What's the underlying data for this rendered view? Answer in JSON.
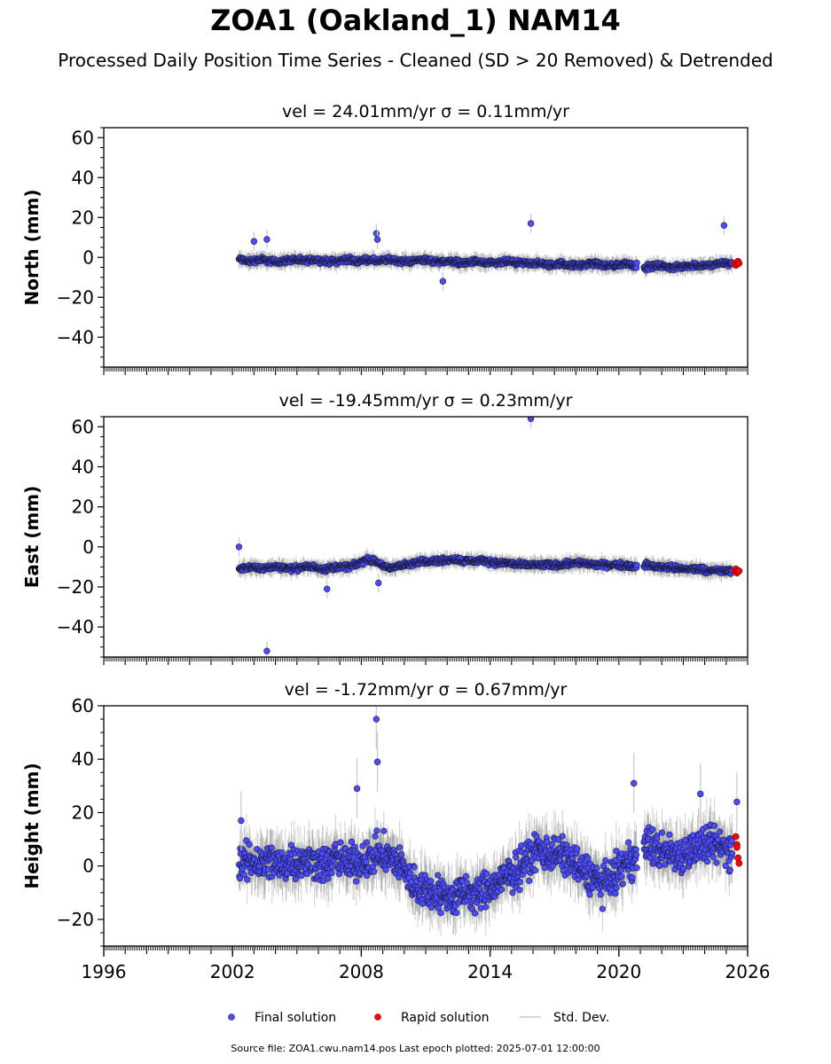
{
  "figure": {
    "title": "ZOA1 (Oakland_1) NAM14",
    "subtitle": "Processed Daily Position Time Series - Cleaned (SD > 20 Removed) & Detrended",
    "source_text": "Source file: ZOA1.cwu.nam14.pos  Last epoch plotted: 2025-07-01 12:00:00"
  },
  "colors": {
    "final": "#4b4bff",
    "final_edge": "#1a1a3a",
    "rapid": "#ff0000",
    "rapid_edge": "#7a0000",
    "std_dev": "#c8c8c8"
  },
  "legend": {
    "placement": "bottom-center",
    "items": [
      {
        "label": "Final solution",
        "marker": "circle",
        "color": "#4b4bff"
      },
      {
        "label": "Rapid solution",
        "marker": "circle",
        "color": "#ff0000"
      },
      {
        "label": "Std. Dev.",
        "marker": "line",
        "color": "#c8c8c8"
      }
    ]
  },
  "chart_data": [
    {
      "type": "scatter",
      "title": "vel = 24.01mm/yr   σ = 0.11mm/yr",
      "ylabel": "North (mm)",
      "xlim": [
        1996,
        2026
      ],
      "ylim": [
        -55,
        65
      ],
      "yticks": [
        -40,
        -20,
        0,
        20,
        40,
        60
      ],
      "ytick_labels": [
        "−40",
        "−20",
        "0",
        "20",
        "40",
        "60"
      ],
      "xtick_labels_shown": false,
      "series": [
        {
          "kind": "final",
          "x": [
            2002.3,
            2002.8,
            2003.3,
            2003.8,
            2004.3,
            2004.8,
            2005.3,
            2005.8,
            2006.3,
            2006.8,
            2007.3,
            2007.8,
            2008.3,
            2008.8,
            2009.3,
            2009.8,
            2010.3,
            2010.8,
            2011.3,
            2011.8,
            2012.3,
            2012.8,
            2013.3,
            2013.8,
            2014.3,
            2014.8,
            2015.3,
            2015.8,
            2016.3,
            2016.8,
            2017.3,
            2017.8,
            2018.3,
            2018.8,
            2019.3,
            2019.8,
            2020.3,
            2020.8,
            2021.3,
            2021.8,
            2022.3,
            2022.8,
            2023.3,
            2023.8,
            2024.3,
            2024.8,
            2025.3
          ],
          "y": [
            -1,
            -2,
            -1,
            -2,
            -2,
            -1,
            -2,
            -1,
            -2,
            -2,
            -1,
            -2,
            -1,
            -2,
            -1,
            -2,
            -2,
            -1,
            -2,
            -2,
            -2,
            -3,
            -2,
            -3,
            -3,
            -2,
            -3,
            -3,
            -3,
            -4,
            -3,
            -4,
            -4,
            -3,
            -4,
            -4,
            -3,
            -4,
            -5,
            -4,
            -5,
            -5,
            -4,
            -4,
            -4,
            -3,
            -3
          ]
        },
        {
          "kind": "final_outliers",
          "x": [
            2003.0,
            2003.6,
            2008.7,
            2008.75,
            2011.8,
            2015.9,
            2024.9
          ],
          "y": [
            8,
            9,
            12,
            9,
            -12,
            17,
            16
          ]
        },
        {
          "kind": "rapid",
          "x": [
            2025.4,
            2025.45,
            2025.5,
            2025.55,
            2025.6
          ],
          "y": [
            -3,
            -4,
            -3,
            -2,
            -3
          ]
        }
      ]
    },
    {
      "type": "scatter",
      "title": "vel = -19.45mm/yr   σ = 0.23mm/yr",
      "ylabel": "East (mm)",
      "xlim": [
        1996,
        2026
      ],
      "ylim": [
        -55,
        65
      ],
      "yticks": [
        -40,
        -20,
        0,
        20,
        40,
        60
      ],
      "ytick_labels": [
        "−40",
        "−20",
        "0",
        "20",
        "40",
        "60"
      ],
      "xtick_labels_shown": false,
      "series": [
        {
          "kind": "final",
          "x": [
            2002.3,
            2002.8,
            2003.3,
            2003.8,
            2004.3,
            2004.8,
            2005.3,
            2005.8,
            2006.3,
            2006.8,
            2007.3,
            2007.8,
            2008.3,
            2008.8,
            2009.3,
            2009.8,
            2010.3,
            2010.8,
            2011.3,
            2011.8,
            2012.3,
            2012.8,
            2013.3,
            2013.8,
            2014.3,
            2014.8,
            2015.3,
            2015.8,
            2016.3,
            2016.8,
            2017.3,
            2017.8,
            2018.3,
            2018.8,
            2019.3,
            2019.8,
            2020.3,
            2020.8,
            2021.3,
            2021.8,
            2022.3,
            2022.8,
            2023.3,
            2023.8,
            2024.3,
            2024.8,
            2025.3
          ],
          "y": [
            -11,
            -10,
            -11,
            -10,
            -10,
            -11,
            -10,
            -10,
            -11,
            -10,
            -10,
            -9,
            -6,
            -8,
            -11,
            -9,
            -9,
            -7,
            -7,
            -7,
            -6,
            -7,
            -7,
            -7,
            -8,
            -8,
            -9,
            -9,
            -9,
            -9,
            -9,
            -8,
            -8,
            -9,
            -9,
            -9,
            -9,
            -10,
            -9,
            -10,
            -10,
            -11,
            -11,
            -11,
            -12,
            -12,
            -12
          ]
        },
        {
          "kind": "final_outliers",
          "x": [
            2002.3,
            2003.6,
            2006.4,
            2015.9,
            2008.8
          ],
          "y": [
            0,
            -52,
            -21,
            64,
            -18
          ]
        },
        {
          "kind": "rapid",
          "x": [
            2025.4,
            2025.45,
            2025.5,
            2025.55,
            2025.6
          ],
          "y": [
            -12,
            -11,
            -13,
            -12,
            -12
          ]
        }
      ]
    },
    {
      "type": "scatter",
      "title": "vel = -1.72mm/yr   σ = 0.67mm/yr",
      "ylabel": "Height (mm)",
      "xlim": [
        1996,
        2026
      ],
      "ylim": [
        -30,
        60
      ],
      "yticks": [
        -20,
        0,
        20,
        40,
        60
      ],
      "ytick_labels": [
        "−20",
        "0",
        "20",
        "40",
        "60"
      ],
      "xticks": [
        1996,
        2002,
        2008,
        2014,
        2020,
        2026
      ],
      "xtick_labels": [
        "1996",
        "2002",
        "2008",
        "2014",
        "2020",
        "2026"
      ],
      "xtick_labels_shown": true,
      "series": [
        {
          "kind": "final",
          "x": [
            2002.3,
            2002.8,
            2003.3,
            2003.8,
            2004.3,
            2004.8,
            2005.3,
            2005.8,
            2006.3,
            2006.8,
            2007.3,
            2007.8,
            2008.3,
            2008.8,
            2009.3,
            2009.8,
            2010.3,
            2010.8,
            2011.3,
            2011.8,
            2012.3,
            2012.8,
            2013.3,
            2013.8,
            2014.3,
            2014.8,
            2015.3,
            2015.8,
            2016.3,
            2016.8,
            2017.3,
            2017.8,
            2018.3,
            2018.8,
            2019.3,
            2019.8,
            2020.3,
            2020.8,
            2021.3,
            2021.8,
            2022.3,
            2022.8,
            2023.3,
            2023.8,
            2024.3,
            2024.8,
            2025.3
          ],
          "y": [
            0,
            2,
            1,
            2,
            0,
            3,
            1,
            2,
            0,
            3,
            1,
            2,
            2,
            5,
            3,
            1,
            -6,
            -8,
            -10,
            -11,
            -12,
            -10,
            -11,
            -9,
            -7,
            -4,
            -1,
            3,
            6,
            5,
            4,
            2,
            -2,
            -4,
            -7,
            -3,
            0,
            4,
            8,
            6,
            5,
            4,
            6,
            7,
            8,
            7,
            6
          ]
        },
        {
          "kind": "final_outliers",
          "x": [
            2007.8,
            2008.7,
            2008.75,
            2002.4,
            2020.7,
            2023.8,
            2025.5
          ],
          "y": [
            29,
            55,
            39,
            17,
            31,
            27,
            24
          ]
        },
        {
          "kind": "rapid",
          "x": [
            2025.45,
            2025.5,
            2025.55,
            2025.6,
            2025.5
          ],
          "y": [
            11,
            8,
            3,
            1,
            7
          ]
        }
      ]
    }
  ]
}
